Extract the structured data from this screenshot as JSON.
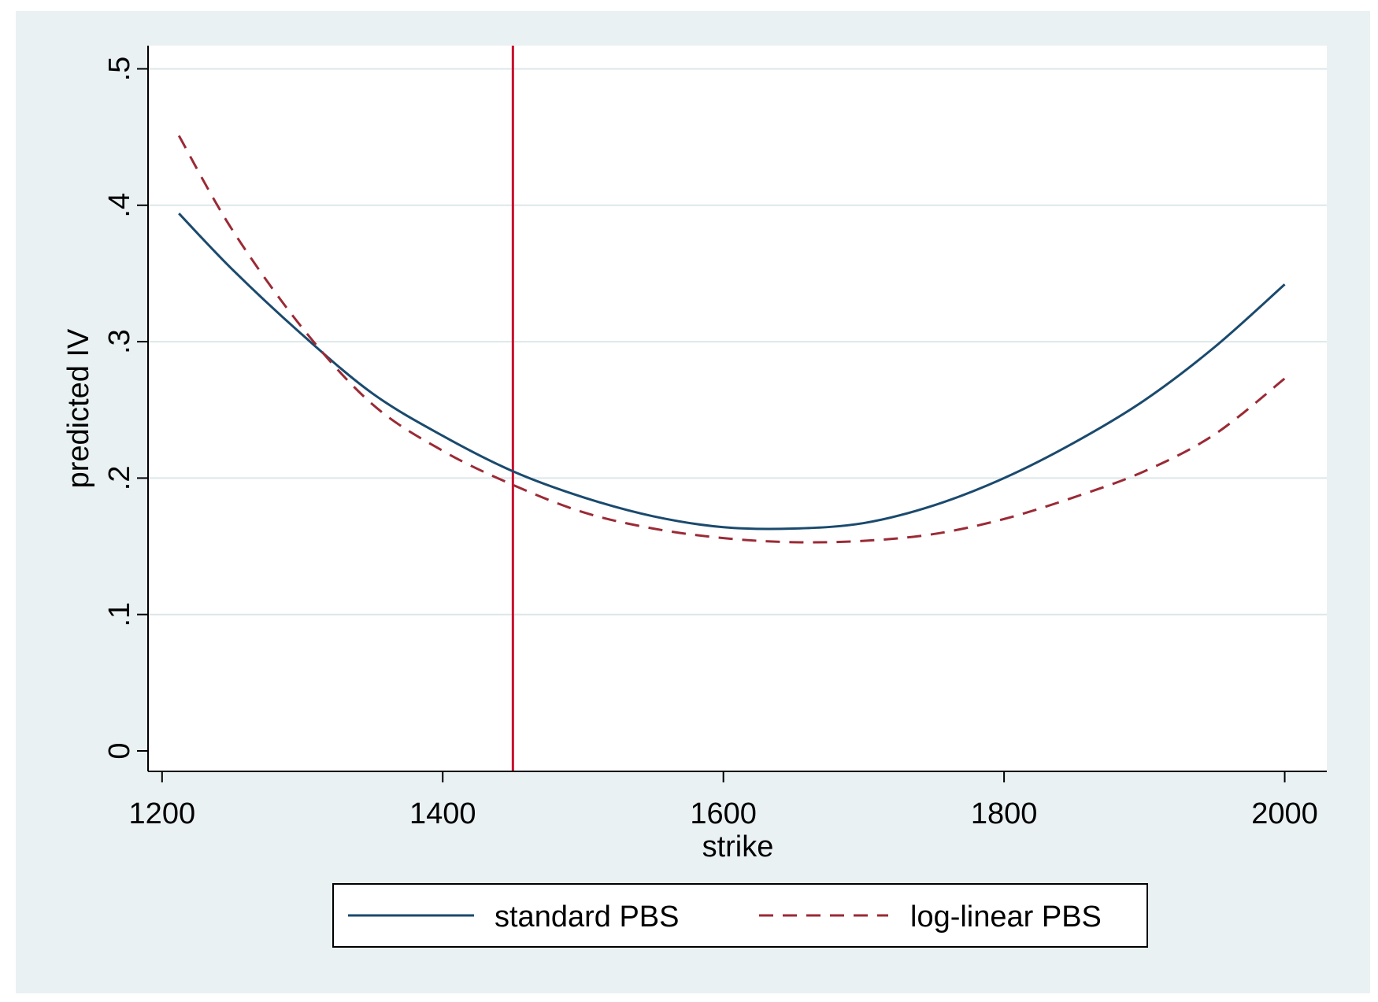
{
  "chart_data": {
    "type": "line",
    "title": "",
    "xlabel": "strike",
    "ylabel": "predicted IV",
    "xlim": [
      1190,
      2030
    ],
    "ylim": [
      -0.015,
      0.517
    ],
    "x_ticks": [
      1200,
      1400,
      1600,
      1800,
      2000
    ],
    "x_tick_labels": [
      "1200",
      "1400",
      "1600",
      "1800",
      "2000"
    ],
    "y_ticks": [
      0,
      0.1,
      0.2,
      0.3,
      0.4,
      0.5
    ],
    "y_tick_labels": [
      "0",
      ".1",
      ".2",
      ".3",
      ".4",
      ".5"
    ],
    "grid": "horizontal",
    "legend_position": "bottom",
    "reference_line": {
      "orientation": "vertical",
      "x": 1450,
      "color": "#c8102e"
    },
    "series": [
      {
        "name": "standard PBS",
        "style": "solid",
        "color": "#1a4a6e",
        "x": [
          1212,
          1250,
          1300,
          1350,
          1400,
          1450,
          1500,
          1550,
          1600,
          1650,
          1700,
          1750,
          1800,
          1850,
          1900,
          1950,
          2000
        ],
        "values": [
          0.394,
          0.353,
          0.305,
          0.262,
          0.231,
          0.205,
          0.186,
          0.172,
          0.164,
          0.163,
          0.167,
          0.18,
          0.2,
          0.226,
          0.257,
          0.296,
          0.342
        ]
      },
      {
        "name": "log-linear PBS",
        "style": "dashed",
        "color": "#9b2a35",
        "x": [
          1212,
          1250,
          1300,
          1350,
          1400,
          1450,
          1500,
          1550,
          1600,
          1650,
          1700,
          1750,
          1800,
          1850,
          1900,
          1950,
          2000
        ],
        "values": [
          0.451,
          0.382,
          0.31,
          0.254,
          0.22,
          0.195,
          0.175,
          0.163,
          0.156,
          0.153,
          0.154,
          0.159,
          0.17,
          0.186,
          0.205,
          0.232,
          0.273
        ]
      }
    ]
  },
  "colors": {
    "outer_background": "#eaf1f3",
    "plot_background": "#ffffff",
    "grid": "#dde7ea",
    "axis": "#000000"
  }
}
